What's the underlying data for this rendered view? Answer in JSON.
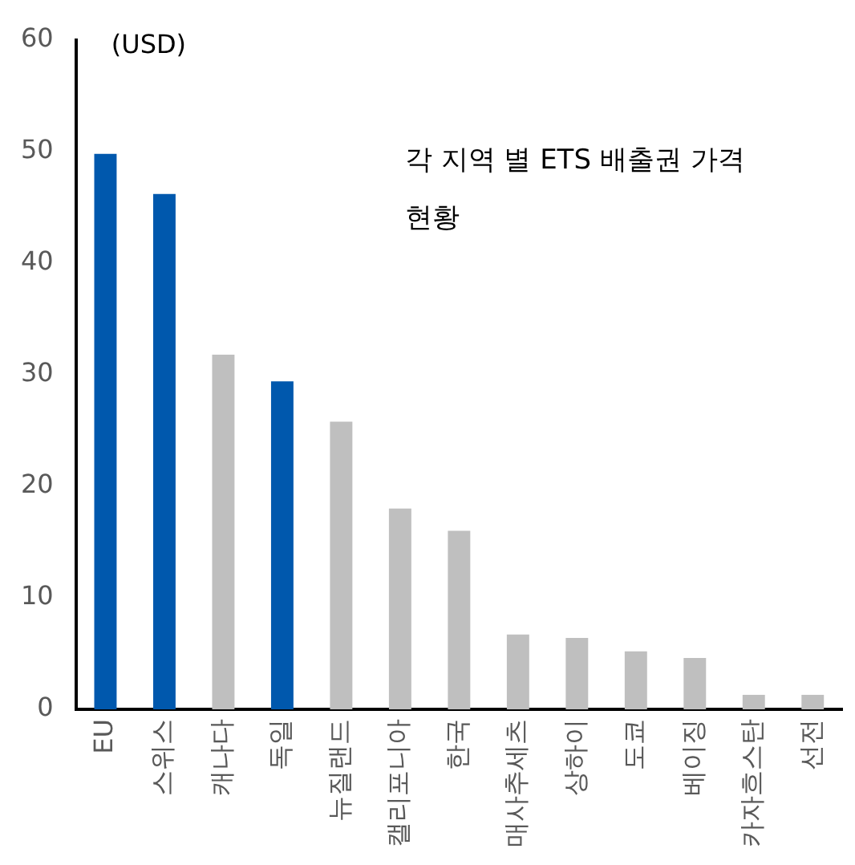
{
  "chart_data": {
    "type": "bar",
    "title": "각 지역 별 ETS 배출권 가격 현황",
    "ylabel": "(USD)",
    "categories": [
      "EU",
      "스위스",
      "캐나다",
      "독일",
      "뉴질랜드",
      "캘리포니아",
      "한국",
      "매사추세츠",
      "상하이",
      "도쿄",
      "베이징",
      "카자흐스탄",
      "선전"
    ],
    "values": [
      49.8,
      46.2,
      31.8,
      29.4,
      25.8,
      18.0,
      16.0,
      6.7,
      6.4,
      5.2,
      4.6,
      1.3,
      1.3
    ],
    "colors": [
      "#0058ad",
      "#0058ad",
      "#bfbfbf",
      "#0058ad",
      "#bfbfbf",
      "#bfbfbf",
      "#bfbfbf",
      "#bfbfbf",
      "#bfbfbf",
      "#bfbfbf",
      "#bfbfbf",
      "#bfbfbf",
      "#bfbfbf"
    ],
    "ylim": [
      0,
      60
    ],
    "yticks": [
      0,
      10,
      20,
      30,
      40,
      50,
      60
    ],
    "grid": false,
    "legend": false
  }
}
